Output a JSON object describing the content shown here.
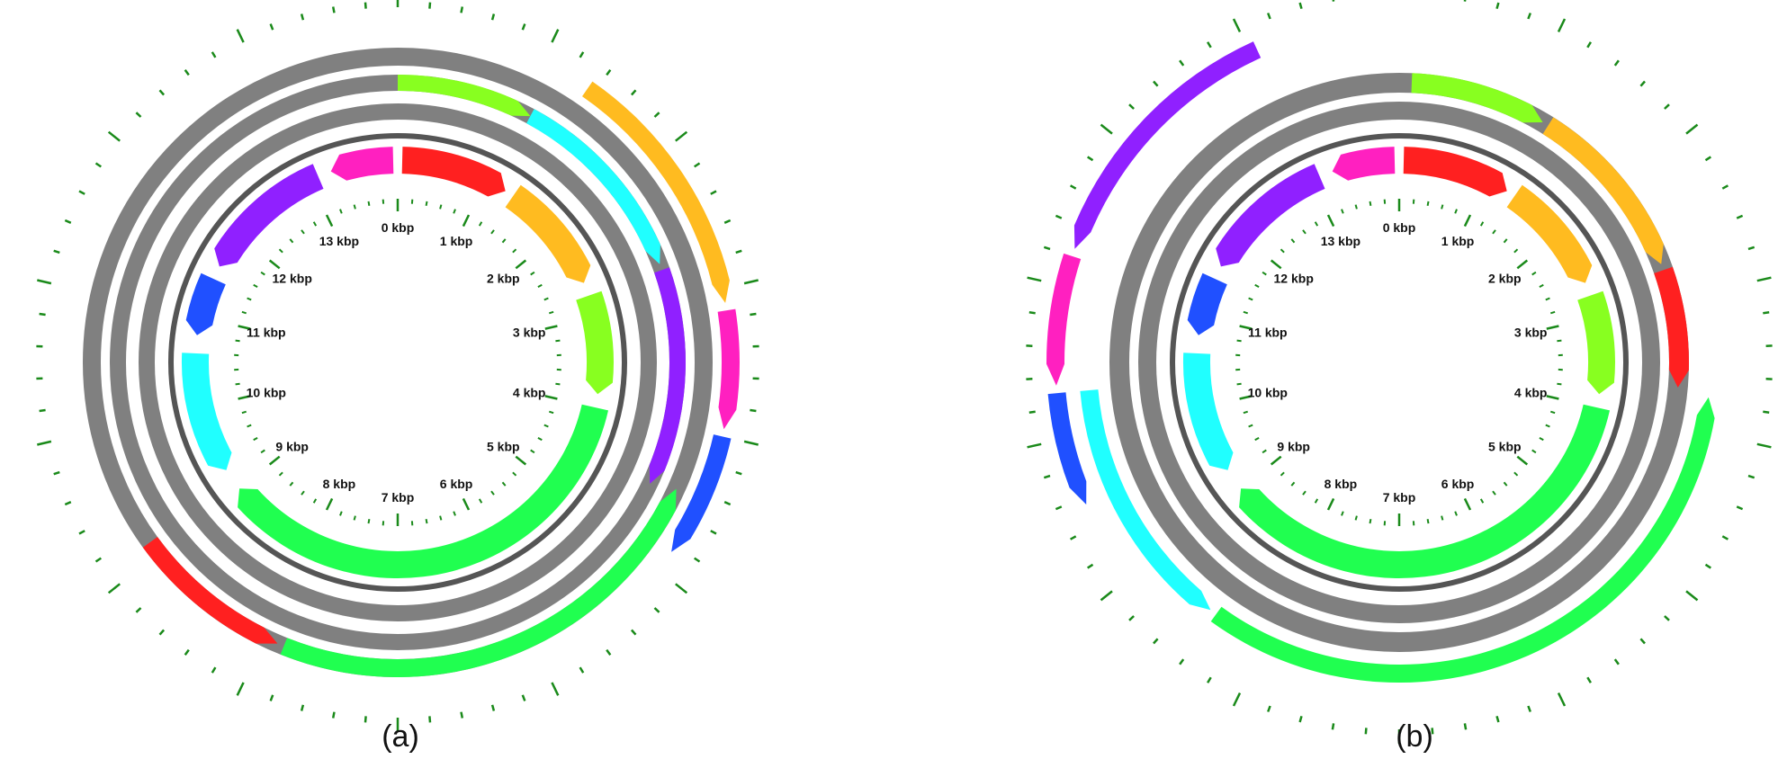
{
  "colors": {
    "red": "#ff2020",
    "orange": "#ffbb20",
    "lime": "#88ff20",
    "cyan": "#20ffff",
    "purple": "#9020ff",
    "blue": "#2050ff",
    "magenta": "#ff20c0",
    "green": "#20ff50",
    "gray": "#808080",
    "tick": "#1a8a1a",
    "backbone": "#555555"
  },
  "genome_total_kbp": 14,
  "kbp_labels": [
    "0 kbp",
    "1 kbp",
    "2 kbp",
    "3 kbp",
    "4 kbp",
    "5 kbp",
    "6 kbp",
    "7 kbp",
    "8 kbp",
    "9 kbp",
    "10 kbp",
    "11 kbp",
    "12 kbp",
    "13 kbp"
  ],
  "panels": [
    {
      "id": "a",
      "caption": "(a)",
      "inner_genes": [
        {
          "color": "red",
          "start": 0.05,
          "end": 1.25,
          "dir": 1
        },
        {
          "color": "orange",
          "start": 1.35,
          "end": 2.6,
          "dir": 1
        },
        {
          "color": "lime",
          "start": 2.75,
          "end": 3.85,
          "dir": 1
        },
        {
          "color": "green",
          "start": 4.0,
          "end": 9.0,
          "dir": 1
        },
        {
          "color": "cyan",
          "start": 9.25,
          "end": 10.6,
          "dir": -1
        },
        {
          "color": "blue",
          "start": 10.8,
          "end": 11.45,
          "dir": -1
        },
        {
          "color": "purple",
          "start": 11.6,
          "end": 13.1,
          "dir": -1
        },
        {
          "color": "magenta",
          "start": 13.25,
          "end": 13.95,
          "dir": -1
        }
      ],
      "outer_tracks": [
        {
          "level": 0,
          "color": "gray",
          "start": 0.0,
          "end": 14.0,
          "dir": 0
        },
        {
          "level": 1,
          "color": "gray",
          "start": 0.0,
          "end": 14.0,
          "dir": 0
        },
        {
          "level": 2,
          "color": "gray",
          "start": 0.0,
          "end": 14.0,
          "dir": 0
        }
      ],
      "outer_genes": [
        {
          "level": 1,
          "color": "lime",
          "start": 0.0,
          "end": 1.1,
          "dir": 1
        },
        {
          "level": 1,
          "color": "cyan",
          "start": 1.1,
          "end": 2.7,
          "dir": 1
        },
        {
          "level": 1,
          "color": "purple",
          "start": 2.75,
          "end": 4.5,
          "dir": 1
        },
        {
          "level": 2,
          "color": "green",
          "start": 4.45,
          "end": 7.85,
          "dir": -1
        },
        {
          "level": 2,
          "color": "red",
          "start": 7.9,
          "end": 9.1,
          "dir": -1
        },
        {
          "level": 3,
          "color": "orange",
          "start": 1.35,
          "end": 3.1,
          "dir": 1
        },
        {
          "level": 3,
          "color": "magenta",
          "start": 3.15,
          "end": 3.95,
          "dir": 1
        },
        {
          "level": 3,
          "color": "blue",
          "start": 4.0,
          "end": 4.85,
          "dir": 1
        }
      ]
    },
    {
      "id": "b",
      "caption": "(b)",
      "inner_genes": [
        {
          "color": "red",
          "start": 0.05,
          "end": 1.25,
          "dir": 1
        },
        {
          "color": "orange",
          "start": 1.35,
          "end": 2.6,
          "dir": 1
        },
        {
          "color": "lime",
          "start": 2.75,
          "end": 3.85,
          "dir": 1
        },
        {
          "color": "green",
          "start": 4.0,
          "end": 9.0,
          "dir": 1
        },
        {
          "color": "cyan",
          "start": 9.25,
          "end": 10.6,
          "dir": -1
        },
        {
          "color": "blue",
          "start": 10.8,
          "end": 11.45,
          "dir": -1
        },
        {
          "color": "purple",
          "start": 11.6,
          "end": 13.1,
          "dir": -1
        },
        {
          "color": "magenta",
          "start": 13.25,
          "end": 13.95,
          "dir": -1
        }
      ],
      "outer_tracks": [
        {
          "level": 0,
          "color": "gray",
          "start": 0.0,
          "end": 14.0,
          "dir": 0
        },
        {
          "level": 1,
          "color": "gray",
          "start": 0.0,
          "end": 14.0,
          "dir": 0
        }
      ],
      "outer_genes": [
        {
          "level": 1,
          "color": "lime",
          "start": 0.1,
          "end": 1.2,
          "dir": 1
        },
        {
          "level": 1,
          "color": "orange",
          "start": 1.25,
          "end": 2.7,
          "dir": 1
        },
        {
          "level": 1,
          "color": "red",
          "start": 2.75,
          "end": 3.7,
          "dir": 1
        },
        {
          "level": 2,
          "color": "green",
          "start": 3.75,
          "end": 8.4,
          "dir": -1
        },
        {
          "level": 2,
          "color": "cyan",
          "start": 8.45,
          "end": 10.3,
          "dir": -1
        },
        {
          "level": 3,
          "color": "blue",
          "start": 9.55,
          "end": 10.3,
          "dir": -1
        },
        {
          "level": 3,
          "color": "magenta",
          "start": 10.35,
          "end": 11.2,
          "dir": -1
        },
        {
          "level": 3,
          "color": "purple",
          "start": 11.25,
          "end": 13.05,
          "dir": -1
        }
      ]
    }
  ]
}
